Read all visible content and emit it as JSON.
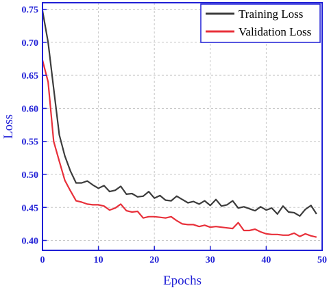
{
  "chart_data": {
    "type": "line",
    "title": "",
    "xlabel": "Epochs",
    "ylabel": "Loss",
    "xlim": [
      0,
      50
    ],
    "ylim": [
      0.385,
      0.76
    ],
    "xticks": [
      0,
      10,
      20,
      30,
      40,
      50
    ],
    "yticks": [
      0.4,
      0.45,
      0.5,
      0.55,
      0.6,
      0.65,
      0.7,
      0.75
    ],
    "xtick_labels": [
      "0",
      "10",
      "20",
      "30",
      "40",
      "50"
    ],
    "ytick_labels": [
      "0.40",
      "0.45",
      "0.50",
      "0.55",
      "0.60",
      "0.65",
      "0.70",
      "0.75"
    ],
    "grid": true,
    "legend_position": "top-right",
    "x": [
      0,
      1,
      2,
      3,
      4,
      5,
      6,
      7,
      8,
      9,
      10,
      11,
      12,
      13,
      14,
      15,
      16,
      17,
      18,
      19,
      20,
      21,
      22,
      23,
      24,
      25,
      26,
      27,
      28,
      29,
      30,
      31,
      32,
      33,
      34,
      35,
      36,
      37,
      38,
      39,
      40,
      41,
      42,
      43,
      44,
      45,
      46,
      47,
      48,
      49
    ],
    "series": [
      {
        "name": "Training Loss",
        "color": "#3c3c3c",
        "values": [
          0.748,
          0.7,
          0.63,
          0.56,
          0.528,
          0.505,
          0.487,
          0.487,
          0.49,
          0.484,
          0.479,
          0.483,
          0.474,
          0.476,
          0.482,
          0.47,
          0.471,
          0.466,
          0.467,
          0.474,
          0.464,
          0.468,
          0.461,
          0.46,
          0.467,
          0.462,
          0.457,
          0.459,
          0.455,
          0.46,
          0.453,
          0.462,
          0.452,
          0.454,
          0.46,
          0.449,
          0.451,
          0.448,
          0.445,
          0.451,
          0.446,
          0.449,
          0.44,
          0.452,
          0.443,
          0.442,
          0.437,
          0.447,
          0.453,
          0.44
        ]
      },
      {
        "name": "Validation Loss",
        "color": "#e8303a",
        "values": [
          0.673,
          0.64,
          0.55,
          0.52,
          0.491,
          0.475,
          0.46,
          0.458,
          0.455,
          0.454,
          0.454,
          0.452,
          0.446,
          0.449,
          0.455,
          0.445,
          0.443,
          0.444,
          0.434,
          0.436,
          0.436,
          0.435,
          0.434,
          0.436,
          0.43,
          0.425,
          0.424,
          0.424,
          0.421,
          0.423,
          0.42,
          0.421,
          0.42,
          0.419,
          0.418,
          0.427,
          0.415,
          0.415,
          0.417,
          0.413,
          0.41,
          0.409,
          0.409,
          0.408,
          0.408,
          0.411,
          0.406,
          0.41,
          0.407,
          0.405
        ]
      }
    ]
  }
}
